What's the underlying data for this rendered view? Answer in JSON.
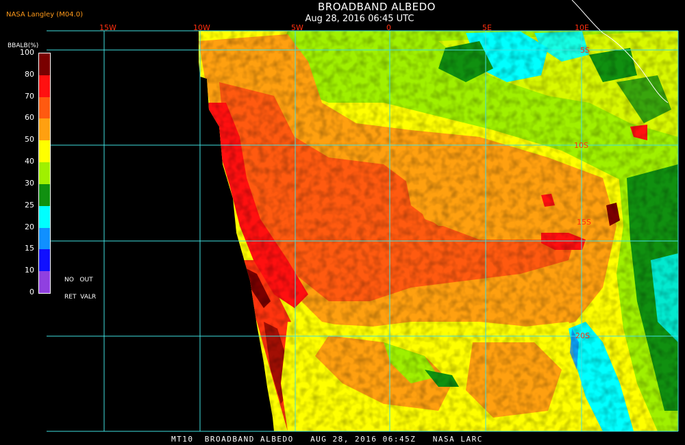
{
  "header": {
    "title": "BROADBAND ALBEDO",
    "subtitle": "Aug 28, 2016 06:45 UTC",
    "source": "NASA Langley (M04.0)"
  },
  "footer": {
    "text": "MT10  BROADBAND ALBEDO   AUG 28, 2016 06:45Z   NASA LARC"
  },
  "colorbar": {
    "label": "BBALB(%)",
    "ticks": [
      "100",
      "80",
      "70",
      "60",
      "50",
      "40",
      "30",
      "25",
      "20",
      "15",
      "10",
      "0"
    ],
    "colors": [
      "#7a0000",
      "#ff1010",
      "#ff5a10",
      "#ffa010",
      "#ffff00",
      "#a0f000",
      "#109010",
      "#00ffff",
      "#1090ff",
      "#1010ff",
      "#9040e0"
    ],
    "no_retrieval": "NO   OUT",
    "valr": "RET  VALR"
  },
  "map": {
    "longitude_labels": [
      "15W",
      "10W",
      "5W",
      "0",
      "5E",
      "10E"
    ],
    "latitude_labels": [
      "5S",
      "10S",
      "15S",
      "20S"
    ],
    "grid_color": "#40e0e0",
    "label_color": "#ff3010"
  }
}
